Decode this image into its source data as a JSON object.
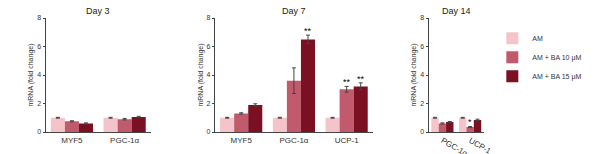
{
  "chart_data": [
    {
      "type": "bar",
      "title": "Day 3",
      "y_label": "mRNA (fold change)",
      "categories": [
        "MYF5",
        "PGC-1α"
      ],
      "ylim": [
        0,
        8
      ],
      "yticks": [
        0,
        2,
        4,
        6,
        8
      ],
      "series": [
        {
          "name": "AM",
          "color": "#f4c4ca",
          "values": [
            1,
            1
          ],
          "errors": [
            0.03,
            0.03
          ]
        },
        {
          "name": "AM + BA 10 μM",
          "color": "#c05a6c",
          "values": [
            0.75,
            0.9
          ],
          "errors": [
            0.04,
            0.05
          ]
        },
        {
          "name": "AM + BA 15 μM",
          "color": "#7b1022",
          "values": [
            0.6,
            1.05
          ],
          "errors": [
            0.04,
            0.05
          ]
        }
      ],
      "annotations": []
    },
    {
      "type": "bar",
      "title": "Day 7",
      "y_label": "mRNA (fold change)",
      "categories": [
        "MYF5",
        "PGC-1α",
        "UCP-1"
      ],
      "ylim": [
        0,
        8
      ],
      "yticks": [
        0,
        2,
        4,
        6,
        8
      ],
      "series": [
        {
          "name": "AM",
          "color": "#f4c4ca",
          "values": [
            1,
            1,
            1
          ],
          "errors": [
            0.03,
            0.03,
            0.03
          ]
        },
        {
          "name": "AM + BA 10 μM",
          "color": "#c05a6c",
          "values": [
            1.3,
            3.6,
            3.0
          ],
          "errors": [
            0.05,
            0.9,
            0.2
          ]
        },
        {
          "name": "AM + BA 15 μM",
          "color": "#7b1022",
          "values": [
            1.9,
            6.5,
            3.2
          ],
          "errors": [
            0.08,
            0.3,
            0.25
          ]
        }
      ],
      "annotations": [
        {
          "category": "PGC-1α",
          "series": "AM + BA 15 μM",
          "text": "**"
        },
        {
          "category": "UCP-1",
          "series": "AM + BA 10 μM",
          "text": "**"
        },
        {
          "category": "UCP-1",
          "series": "AM + BA 15 μM",
          "text": "**"
        }
      ]
    },
    {
      "type": "bar",
      "title": "Day 14",
      "y_label": "mRNA (fold change)",
      "categories": [
        "PGC-1α",
        "UCP-1"
      ],
      "ylim": [
        0,
        8
      ],
      "yticks": [
        0,
        2,
        4,
        6,
        8
      ],
      "legend": "right",
      "series": [
        {
          "name": "AM",
          "color": "#f4c4ca",
          "values": [
            1,
            1
          ],
          "errors": [
            0.03,
            0.03
          ]
        },
        {
          "name": "AM + BA 10 μM",
          "color": "#c05a6c",
          "values": [
            0.6,
            0.35
          ],
          "errors": [
            0.04,
            0.04
          ]
        },
        {
          "name": "AM + BA 15 μM",
          "color": "#7b1022",
          "values": [
            0.7,
            0.85
          ],
          "errors": [
            0.04,
            0.05
          ]
        }
      ],
      "annotations": [
        {
          "category": "UCP-1",
          "series": "AM + BA 10 μM",
          "text": "*"
        }
      ]
    }
  ]
}
